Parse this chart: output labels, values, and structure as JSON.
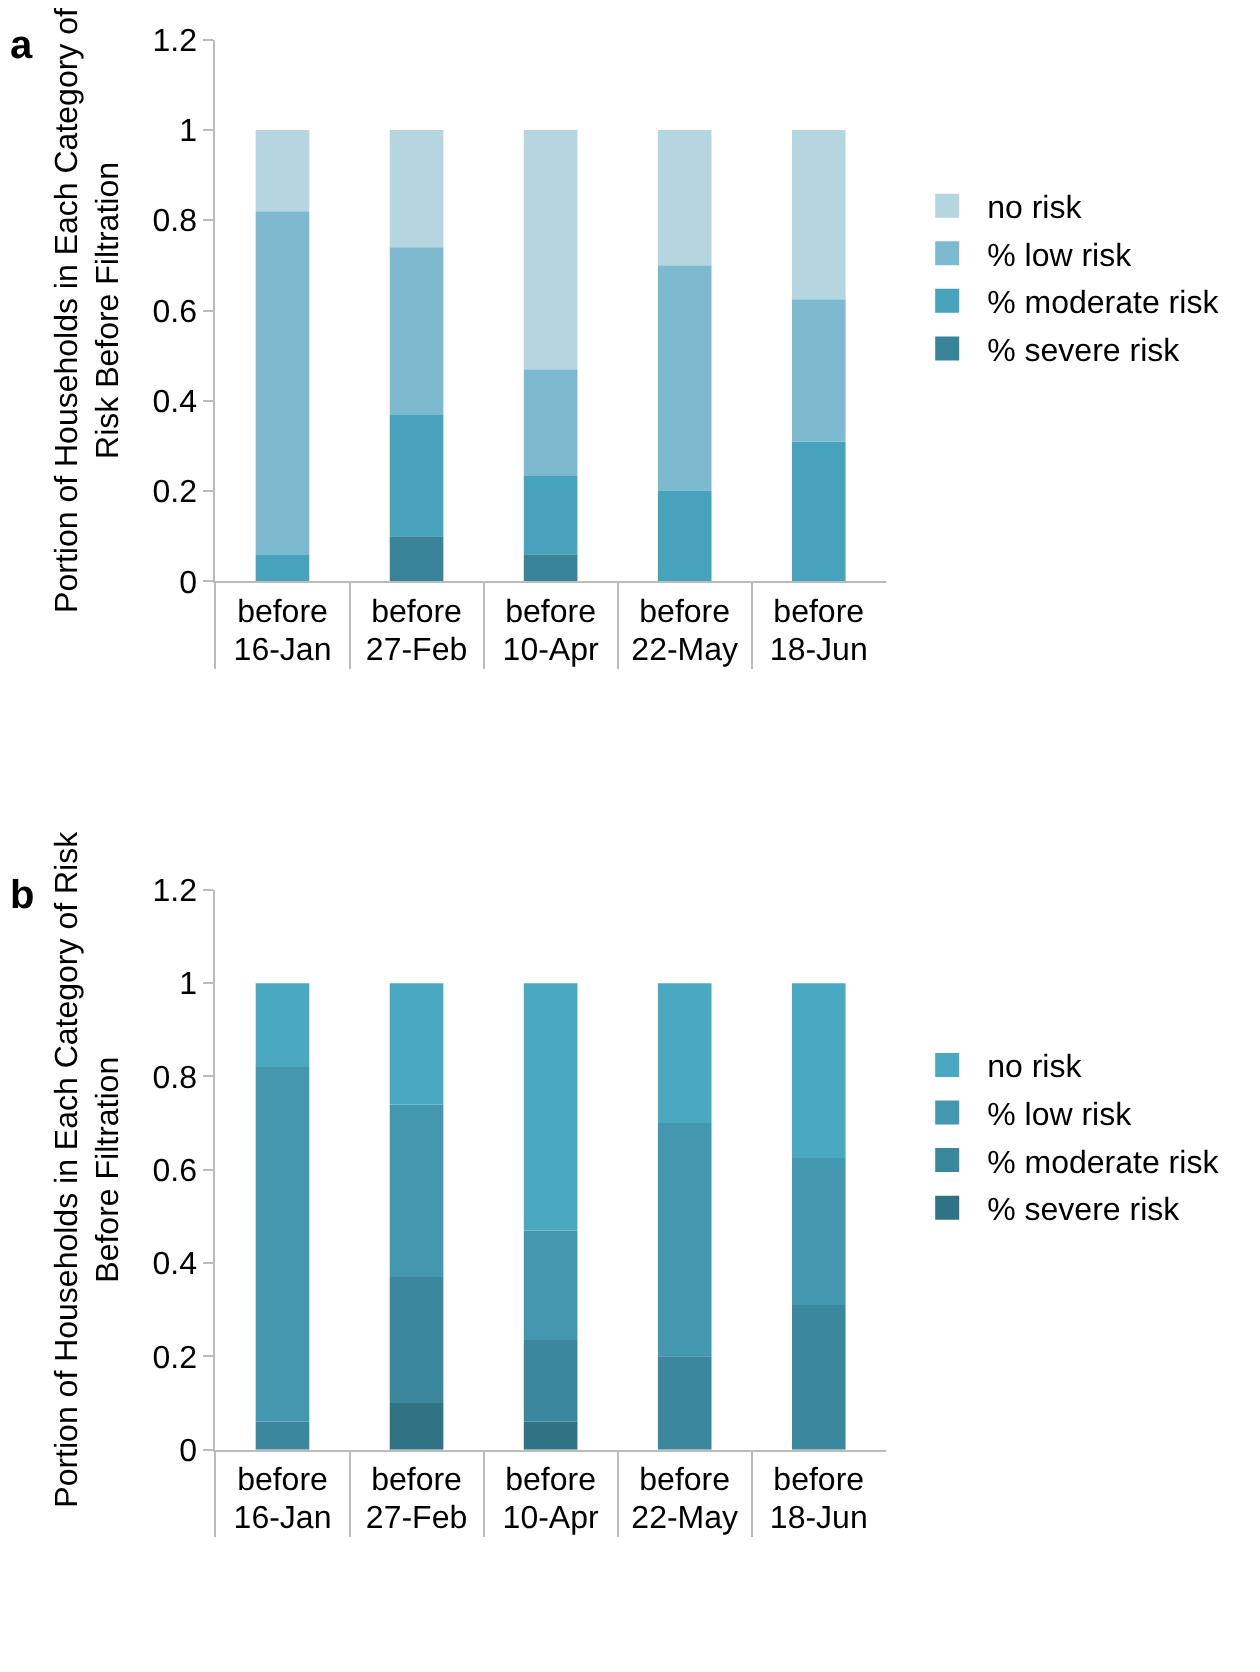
{
  "chart_data": [
    {
      "type": "bar",
      "title": "a",
      "stacked": true,
      "ylabel": "Portion of Households in Each Category of\nRisk Before Filtration",
      "categories": [
        "before\n16-Jan",
        "before\n27-Feb",
        "before\n10-Apr",
        "before\n22-May",
        "before\n18-Jun"
      ],
      "series": [
        {
          "name": "% severe risk",
          "color": "#3a8499",
          "values": [
            0,
            0.1,
            0.06,
            0,
            0
          ]
        },
        {
          "name": "% moderate risk",
          "color": "#47a2bb",
          "values": [
            0.06,
            0.27,
            0.175,
            0.2,
            0.31
          ]
        },
        {
          "name": "% low risk",
          "color": "#7dbad0",
          "values": [
            0.76,
            0.37,
            0.235,
            0.5,
            0.315
          ]
        },
        {
          "name": "no risk",
          "color": "#b5d5e0",
          "values": [
            0.18,
            0.26,
            0.53,
            0.3,
            0.375
          ]
        }
      ],
      "ylim": [
        0,
        1.2
      ],
      "yticks": [
        0,
        0.2,
        0.4,
        0.6,
        0.8,
        1,
        1.2
      ],
      "legend": "right"
    },
    {
      "type": "bar",
      "title": "b",
      "stacked": true,
      "ylabel": "Portion of Households in Each Category of Risk\nBefore Filtration",
      "categories": [
        "before\n16-Jan",
        "before\n27-Feb",
        "before\n10-Apr",
        "before\n22-May",
        "before\n18-Jun"
      ],
      "series": [
        {
          "name": "% severe risk",
          "color": "#2f7385",
          "values": [
            0,
            0.1,
            0.06,
            0,
            0
          ]
        },
        {
          "name": "% moderate risk",
          "color": "#3b879d",
          "values": [
            0.06,
            0.27,
            0.175,
            0.2,
            0.31
          ]
        },
        {
          "name": "% low risk",
          "color": "#4398b0",
          "values": [
            0.76,
            0.37,
            0.235,
            0.5,
            0.315
          ]
        },
        {
          "name": "no risk",
          "color": "#4aa8c1",
          "values": [
            0.18,
            0.26,
            0.53,
            0.3,
            0.375
          ]
        }
      ],
      "ylim": [
        0,
        1.2
      ],
      "yticks": [
        0,
        0.2,
        0.4,
        0.6,
        0.8,
        1,
        1.2
      ],
      "legend": "right"
    }
  ]
}
